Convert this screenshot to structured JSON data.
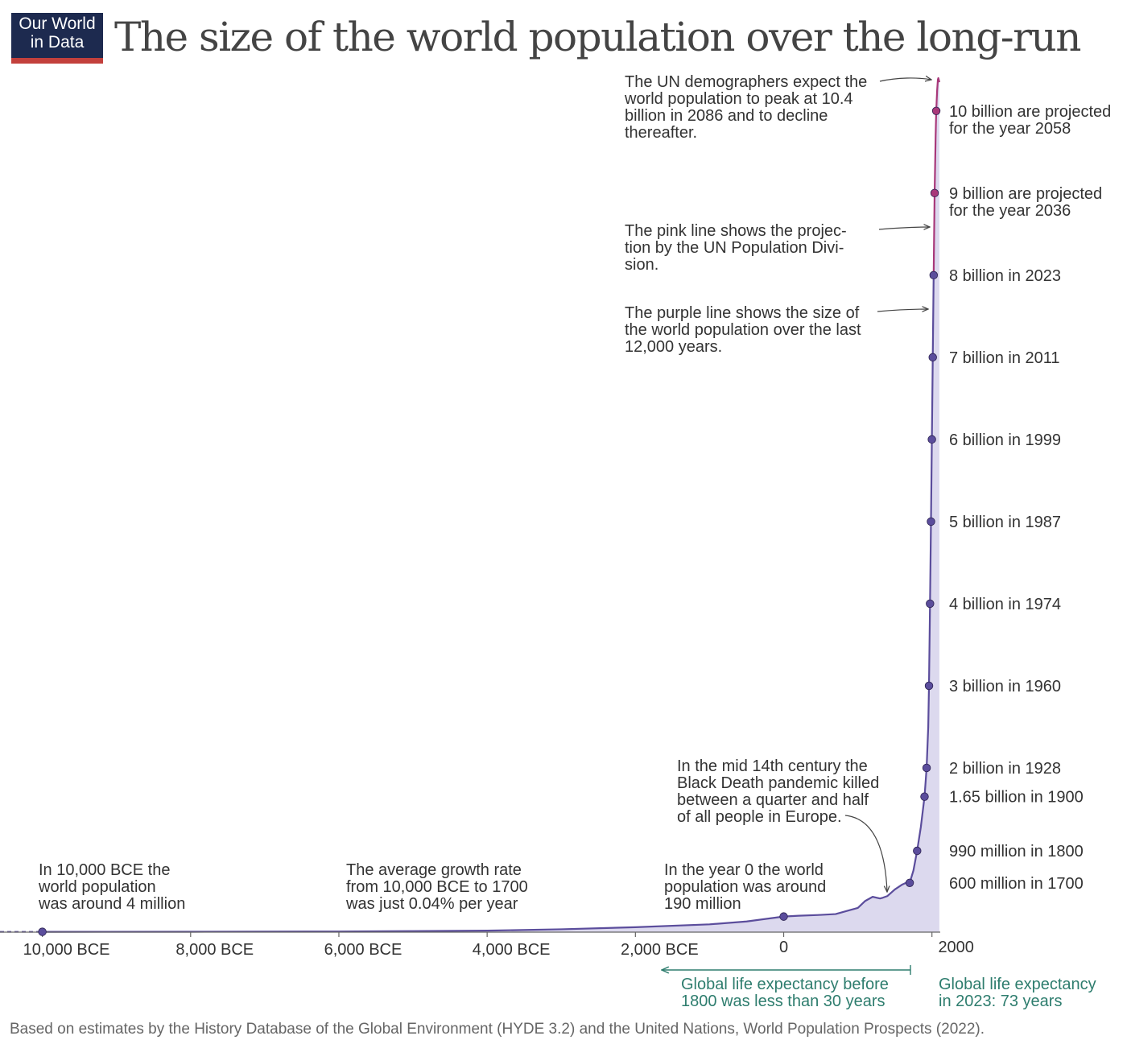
{
  "logo": {
    "line1": "Our World",
    "line2": "in Data"
  },
  "title": "The size of the world population over the long-run",
  "source": "Based on estimates by the History Database of the Global Environment (HYDE 3.2) and the United Nations, World Population Prospects (2022).",
  "colors": {
    "history": "#5b4d9c",
    "projection": "#a8387a",
    "area": "#dcd9ee",
    "annotation_green": "#2e7d6e",
    "logo_bg": "#1d2a4f",
    "logo_bar": "#c3403c"
  },
  "chart_data": {
    "type": "area",
    "title": "The size of the world population over the long-run",
    "xlabel": "",
    "ylabel": "",
    "xlim": [
      -11000,
      2100
    ],
    "ylim": [
      0,
      10.4
    ],
    "x_ticks": [
      {
        "value": -10000,
        "label": "10,000 BCE"
      },
      {
        "value": -8000,
        "label": "8,000 BCE"
      },
      {
        "value": -6000,
        "label": "6,000 BCE"
      },
      {
        "value": -4000,
        "label": "4,000 BCE"
      },
      {
        "value": -2000,
        "label": "2,000 BCE"
      },
      {
        "value": 0,
        "label": "0"
      },
      {
        "value": 2000,
        "label": "2000"
      }
    ],
    "series": [
      {
        "name": "World population (HYDE 3.2)",
        "unit": "billion",
        "points": [
          [
            -11000,
            0.0035
          ],
          [
            -10000,
            0.004
          ],
          [
            -8000,
            0.005
          ],
          [
            -6000,
            0.008
          ],
          [
            -5000,
            0.013
          ],
          [
            -4000,
            0.018
          ],
          [
            -3000,
            0.035
          ],
          [
            -2000,
            0.06
          ],
          [
            -1000,
            0.095
          ],
          [
            -500,
            0.13
          ],
          [
            0,
            0.19
          ],
          [
            200,
            0.2
          ],
          [
            500,
            0.21
          ],
          [
            700,
            0.22
          ],
          [
            900,
            0.27
          ],
          [
            1000,
            0.295
          ],
          [
            1100,
            0.38
          ],
          [
            1200,
            0.43
          ],
          [
            1300,
            0.41
          ],
          [
            1340,
            0.42
          ],
          [
            1400,
            0.44
          ],
          [
            1500,
            0.52
          ],
          [
            1600,
            0.58
          ],
          [
            1650,
            0.6
          ],
          [
            1700,
            0.6
          ],
          [
            1750,
            0.75
          ],
          [
            1800,
            0.99
          ],
          [
            1850,
            1.28
          ],
          [
            1900,
            1.65
          ],
          [
            1928,
            2.0
          ],
          [
            1950,
            2.5
          ],
          [
            1960,
            3.0
          ],
          [
            1974,
            4.0
          ],
          [
            1987,
            5.0
          ],
          [
            1999,
            6.0
          ],
          [
            2011,
            7.0
          ],
          [
            2023,
            8.0
          ]
        ]
      },
      {
        "name": "UN projection",
        "unit": "billion",
        "points": [
          [
            2023,
            8.0
          ],
          [
            2036,
            9.0
          ],
          [
            2050,
            9.7
          ],
          [
            2058,
            10.0
          ],
          [
            2070,
            10.25
          ],
          [
            2080,
            10.38
          ],
          [
            2086,
            10.4
          ],
          [
            2092,
            10.38
          ],
          [
            2100,
            10.35
          ]
        ]
      }
    ],
    "milestones": [
      {
        "year": 1700,
        "value": 0.6,
        "label": "600 million in 1700",
        "series": "history"
      },
      {
        "year": 1800,
        "value": 0.99,
        "label": "990 million in 1800",
        "series": "history"
      },
      {
        "year": 1900,
        "value": 1.65,
        "label": "1.65 billion in 1900",
        "series": "history"
      },
      {
        "year": 1928,
        "value": 2.0,
        "label": "2 billion in 1928",
        "series": "history"
      },
      {
        "year": 1960,
        "value": 3.0,
        "label": "3 billion in 1960",
        "series": "history"
      },
      {
        "year": 1974,
        "value": 4.0,
        "label": "4 billion in 1974",
        "series": "history"
      },
      {
        "year": 1987,
        "value": 5.0,
        "label": "5 billion in 1987",
        "series": "history"
      },
      {
        "year": 1999,
        "value": 6.0,
        "label": "6 billion in 1999",
        "series": "history"
      },
      {
        "year": 2011,
        "value": 7.0,
        "label": "7 billion in 2011",
        "series": "history"
      },
      {
        "year": 2023,
        "value": 8.0,
        "label": "8 billion in 2023",
        "series": "history"
      },
      {
        "year": 2036,
        "value": 9.0,
        "label": "9 billion are projected|for the year 2036",
        "series": "projection"
      },
      {
        "year": 2058,
        "value": 10.0,
        "label": "10 billion are projected|for the year 2058",
        "series": "projection"
      }
    ],
    "marker_points": [
      {
        "year": -10000,
        "value": 0.004
      },
      {
        "year": 0,
        "value": 0.19
      }
    ],
    "annotations": {
      "un_peak": [
        "The UN demographers expect the",
        "world population to peak at 10.4",
        "billion in 2086 and to decline",
        "thereafter."
      ],
      "pink_line": [
        "The pink line shows the projec-",
        "tion by the UN Population Divi-",
        "sion."
      ],
      "purple_line": [
        "The purple line shows the size of",
        "the world population over the last",
        "12,000 years."
      ],
      "black_death": [
        "In the mid 14th century the",
        "Black Death pandemic killed",
        "between a quarter and half",
        "of all people in Europe."
      ],
      "year_zero": [
        "In the year 0 the world",
        "population was around",
        "190 million"
      ],
      "growth_rate": [
        "The average growth rate",
        "from 10,000 BCE to 1700",
        "was just 0.04% per year"
      ],
      "bce_10000": [
        "In 10,000 BCE the",
        "world population",
        "was around 4 million"
      ]
    },
    "life_expectancy": {
      "before_1800": [
        "Global life expectancy before",
        "1800 was less than 30 years"
      ],
      "in_2023": [
        "Global life expectancy",
        "in 2023: 73 years"
      ]
    }
  }
}
